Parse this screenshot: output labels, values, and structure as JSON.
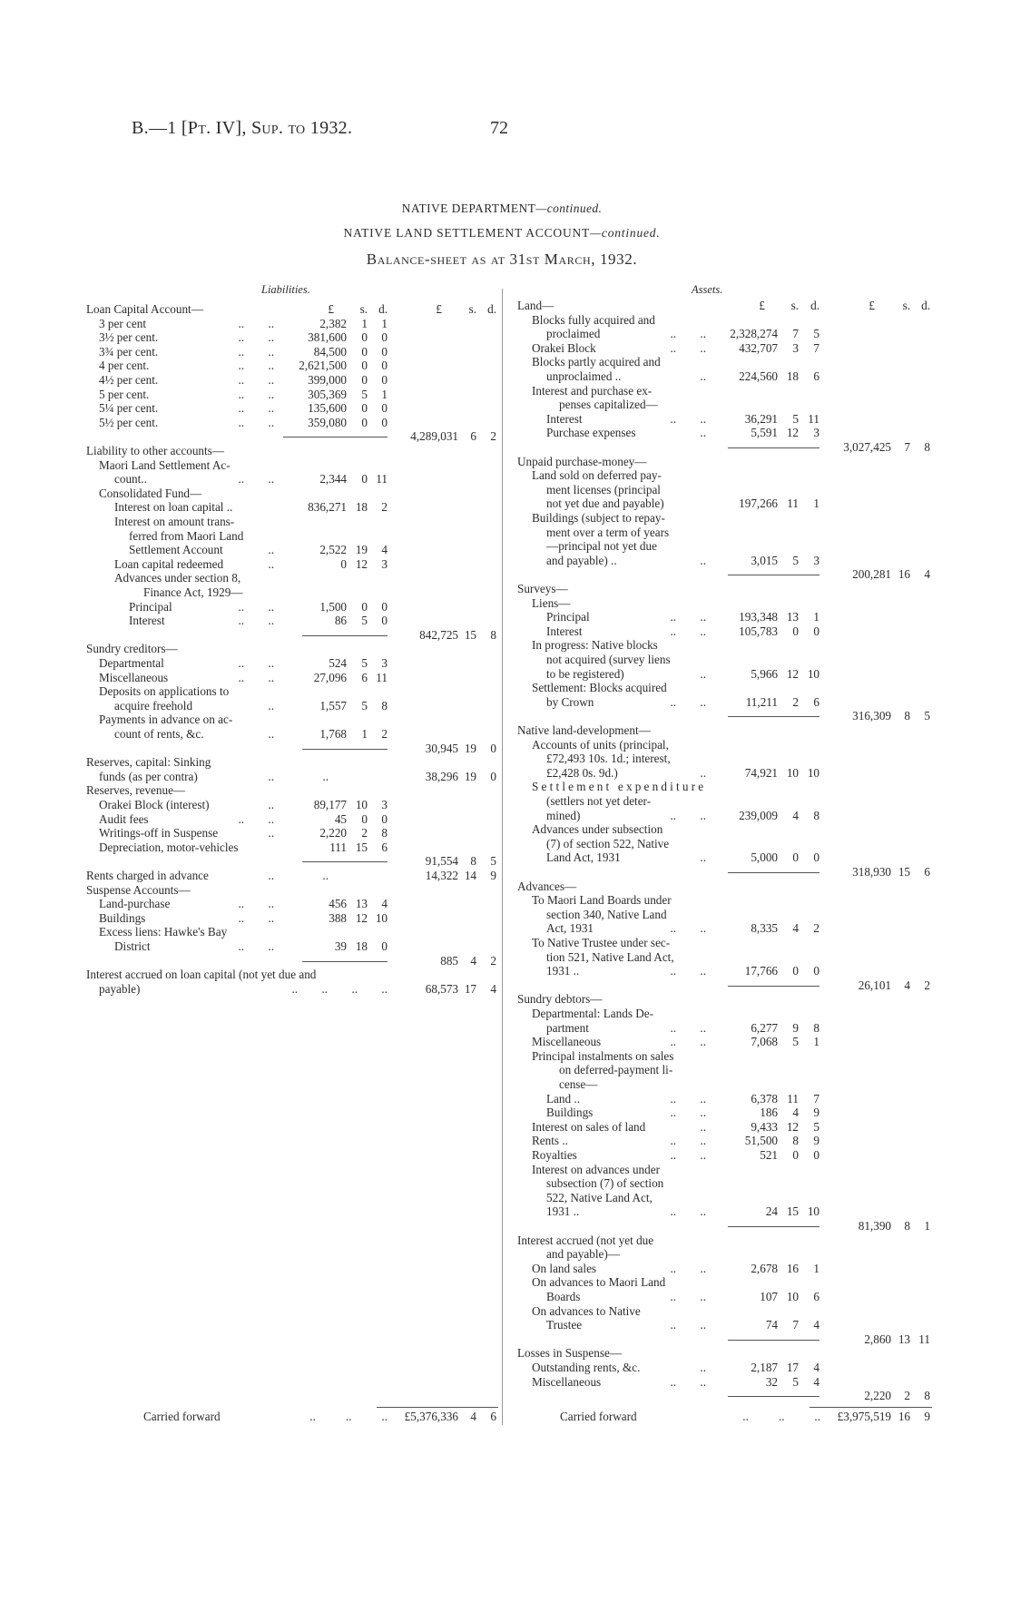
{
  "header": {
    "reference": "B.—1 [Pt. IV], Sup. to 1932.",
    "page_number": "72"
  },
  "titles": {
    "department": "NATIVE DEPARTMENT",
    "department_suffix": "—continued.",
    "account": "NATIVE LAND SETTLEMENT ACCOUNT",
    "account_suffix": "—continued.",
    "statement": "Balance-sheet as at 31st March, 1932."
  },
  "currency_headers": {
    "pounds": "£",
    "shillings": "s.",
    "pence": "d."
  },
  "liabilities": {
    "heading": "Liabilities.",
    "rows": [
      {
        "t": "Loan Capital Account—",
        "i": 0,
        "head": true
      },
      {
        "t": "3 per cent",
        "i": 1,
        "dots": "..        ..",
        "a": [
          "2,382",
          "1",
          "1"
        ]
      },
      {
        "t": "3½ per cent.",
        "i": 1,
        "dots": "..        ..",
        "a": [
          "381,600",
          "0",
          "0"
        ]
      },
      {
        "t": "3¾ per cent.",
        "i": 1,
        "dots": "..        ..",
        "a": [
          "84,500",
          "0",
          "0"
        ]
      },
      {
        "t": "4 per cent.",
        "i": 1,
        "dots": "..        ..",
        "a": [
          "2,621,500",
          "0",
          "0"
        ]
      },
      {
        "t": "4½ per cent.",
        "i": 1,
        "dots": "..        ..",
        "a": [
          "399,000",
          "0",
          "0"
        ]
      },
      {
        "t": "5 per cent.",
        "i": 1,
        "dots": "..        ..",
        "a": [
          "305,369",
          "5",
          "1"
        ]
      },
      {
        "t": "5¼ per cent.",
        "i": 1,
        "dots": "..        ..",
        "a": [
          "135,600",
          "0",
          "0"
        ]
      },
      {
        "t": "5½ per cent.",
        "i": 1,
        "dots": "..        ..",
        "a": [
          "359,080",
          "0",
          "0"
        ]
      },
      {
        "t": "",
        "i": 0,
        "rule": true,
        "b": [
          "4,289,031",
          "6",
          "2"
        ]
      },
      {
        "t": "Liability to other accounts—",
        "i": 0
      },
      {
        "t": "Maori Land Settlement Ac-",
        "i": 1
      },
      {
        "t": "count..",
        "i": 2,
        "dots": "..        ..",
        "a": [
          "2,344",
          "0",
          "11"
        ]
      },
      {
        "t": "Consolidated Fund—",
        "i": 1
      },
      {
        "t": "Interest on loan capital ..",
        "i": 2,
        "a": [
          "836,271",
          "18",
          "2"
        ]
      },
      {
        "t": "Interest on amount trans-",
        "i": 2
      },
      {
        "t": "ferred from Maori Land",
        "i": 3
      },
      {
        "t": "Settlement Account",
        "i": 3,
        "dots": "..",
        "a": [
          "2,522",
          "19",
          "4"
        ]
      },
      {
        "t": "Loan capital redeemed",
        "i": 2,
        "dots": "..",
        "a": [
          "0",
          "12",
          "3"
        ]
      },
      {
        "t": "Advances under section 8,",
        "i": 2
      },
      {
        "t": "Finance Act, 1929—",
        "i": 4
      },
      {
        "t": "Principal",
        "i": 3,
        "dots": "..        ..",
        "a": [
          "1,500",
          "0",
          "0"
        ]
      },
      {
        "t": "Interest",
        "i": 3,
        "dots": "..        ..",
        "a": [
          "86",
          "5",
          "0"
        ]
      },
      {
        "t": "",
        "i": 0,
        "rule": true,
        "b": [
          "842,725",
          "15",
          "8"
        ]
      },
      {
        "t": "Sundry creditors—",
        "i": 0
      },
      {
        "t": "Departmental",
        "i": 1,
        "dots": "..        ..",
        "a": [
          "524",
          "5",
          "3"
        ]
      },
      {
        "t": "Miscellaneous",
        "i": 1,
        "dots": "..        ..",
        "a": [
          "27,096",
          "6",
          "11"
        ]
      },
      {
        "t": "Deposits on applications to",
        "i": 1
      },
      {
        "t": "acquire freehold",
        "i": 2,
        "dots": "..",
        "a": [
          "1,557",
          "5",
          "8"
        ]
      },
      {
        "t": "Payments in advance on ac-",
        "i": 1
      },
      {
        "t": "count of rents, &c.",
        "i": 2,
        "dots": "..",
        "a": [
          "1,768",
          "1",
          "2"
        ]
      },
      {
        "t": "",
        "i": 0,
        "rule": true,
        "b": [
          "30,945",
          "19",
          "0"
        ]
      },
      {
        "t": "Reserves,   capital:   Sinking",
        "i": 0
      },
      {
        "t": "funds (as per contra)",
        "i": 1,
        "dots": "..",
        "a": [
          "..",
          "",
          ""
        ],
        "b": [
          "38,296",
          "19",
          "0"
        ]
      },
      {
        "t": "Reserves, revenue—",
        "i": 0
      },
      {
        "t": "Orakei Block (interest)",
        "i": 1,
        "dots": "..",
        "a": [
          "89,177",
          "10",
          "3"
        ]
      },
      {
        "t": "Audit fees",
        "i": 1,
        "dots": "..        ..",
        "a": [
          "45",
          "0",
          "0"
        ]
      },
      {
        "t": "Writings-off in Suspense",
        "i": 1,
        "dots": "..",
        "a": [
          "2,220",
          "2",
          "8"
        ]
      },
      {
        "t": "Depreciation, motor-vehicles",
        "i": 1,
        "a": [
          "111",
          "15",
          "6"
        ]
      },
      {
        "t": "",
        "i": 0,
        "rule": true,
        "b": [
          "91,554",
          "8",
          "5"
        ]
      },
      {
        "t": "Rents charged in advance",
        "i": 0,
        "dots": "..",
        "a": [
          "..",
          "",
          ""
        ],
        "b": [
          "14,322",
          "14",
          "9"
        ]
      },
      {
        "t": "Suspense Accounts—",
        "i": 0
      },
      {
        "t": "Land-purchase",
        "i": 1,
        "dots": "..        ..",
        "a": [
          "456",
          "13",
          "4"
        ]
      },
      {
        "t": "Buildings",
        "i": 1,
        "dots": "..        ..",
        "a": [
          "388",
          "12",
          "10"
        ]
      },
      {
        "t": "Excess liens:  Hawke's Bay",
        "i": 1
      },
      {
        "t": "District",
        "i": 2,
        "dots": "..        ..",
        "a": [
          "39",
          "18",
          "0"
        ]
      },
      {
        "t": "",
        "i": 0,
        "rule": true,
        "b": [
          "885",
          "4",
          "2"
        ]
      },
      {
        "t": "Interest accrued on loan capital (not yet due and",
        "i": 0
      },
      {
        "t": "payable)",
        "i": 1,
        "dots": "..        ..        ..        ..",
        "wide": true,
        "b": [
          "68,573",
          "17",
          "4"
        ]
      }
    ],
    "carried_forward": {
      "label": "Carried forward",
      "dots": "..          ..          ..",
      "total": [
        "£5,376,336",
        "4",
        "6"
      ]
    }
  },
  "assets": {
    "heading": "Assets.",
    "rows": [
      {
        "t": "Land—",
        "i": 0,
        "head": true
      },
      {
        "t": "Blocks  fully  acquired  and",
        "i": 1
      },
      {
        "t": "proclaimed",
        "i": 2,
        "dots": "..        ..",
        "a": [
          "2,328,274",
          "7",
          "5"
        ]
      },
      {
        "t": "Orakei Block",
        "i": 1,
        "dots": "..        ..",
        "a": [
          "432,707",
          "3",
          "7"
        ]
      },
      {
        "t": "Blocks partly acquired and",
        "i": 1
      },
      {
        "t": "unproclaimed ..",
        "i": 2,
        "dots": "..",
        "a": [
          "224,560",
          "18",
          "6"
        ]
      },
      {
        "t": "Interest  and  purchase  ex-",
        "i": 1
      },
      {
        "t": "penses capitalized—",
        "i": 3
      },
      {
        "t": "Interest",
        "i": 2,
        "dots": "..        ..",
        "a": [
          "36,291",
          "5",
          "11"
        ]
      },
      {
        "t": "Purchase expenses",
        "i": 2,
        "dots": "..",
        "a": [
          "5,591",
          "12",
          "3"
        ]
      },
      {
        "t": "",
        "i": 0,
        "rule": true,
        "b": [
          "3,027,425",
          "7",
          "8"
        ]
      },
      {
        "t": "Unpaid purchase-money—",
        "i": 0
      },
      {
        "t": "Land sold on deferred pay-",
        "i": 1
      },
      {
        "t": "ment  licenses  (principal",
        "i": 2
      },
      {
        "t": "not yet due and payable)",
        "i": 2,
        "a": [
          "197,266",
          "11",
          "1"
        ]
      },
      {
        "t": "Buildings (subject to repay-",
        "i": 1
      },
      {
        "t": "ment over a term of years",
        "i": 2
      },
      {
        "t": "—principal  not  yet  due",
        "i": 2
      },
      {
        "t": "and payable) ..",
        "i": 2,
        "dots": "..",
        "a": [
          "3,015",
          "5",
          "3"
        ]
      },
      {
        "t": "",
        "i": 0,
        "rule": true,
        "b": [
          "200,281",
          "16",
          "4"
        ]
      },
      {
        "t": "Surveys—",
        "i": 0
      },
      {
        "t": "Liens—",
        "i": 1
      },
      {
        "t": "Principal",
        "i": 2,
        "dots": "..        ..",
        "a": [
          "193,348",
          "13",
          "1"
        ]
      },
      {
        "t": "Interest",
        "i": 2,
        "dots": "..        ..",
        "a": [
          "105,783",
          "0",
          "0"
        ]
      },
      {
        "t": "In progress:  Native blocks",
        "i": 1
      },
      {
        "t": "not acquired (survey liens",
        "i": 2
      },
      {
        "t": "to be registered)",
        "i": 2,
        "dots": "..",
        "a": [
          "5,966",
          "12",
          "10"
        ]
      },
      {
        "t": "Settlement: Blocks acquired",
        "i": 1
      },
      {
        "t": "by Crown",
        "i": 2,
        "dots": "..        ..",
        "a": [
          "11,211",
          "2",
          "6"
        ]
      },
      {
        "t": "",
        "i": 0,
        "rule": true,
        "b": [
          "316,309",
          "8",
          "5"
        ]
      },
      {
        "t": "Native land-development—",
        "i": 0
      },
      {
        "t": "Accounts of units (principal,",
        "i": 1
      },
      {
        "t": "£72,493 10s. 1d.; interest,",
        "i": 2
      },
      {
        "t": "£2,428 0s. 9d.)",
        "i": 2,
        "dots": "..",
        "a": [
          "74,921",
          "10",
          "10"
        ]
      },
      {
        "t": "Settlement expenditure",
        "i": 1,
        "spaced": true
      },
      {
        "t": "(settlers   not   yet   deter-",
        "i": 2
      },
      {
        "t": "mined)",
        "i": 2,
        "dots": "..        ..",
        "a": [
          "239,009",
          "4",
          "8"
        ]
      },
      {
        "t": "Advances  under  subsection",
        "i": 1
      },
      {
        "t": "(7) of section 522, Native",
        "i": 2
      },
      {
        "t": "Land Act, 1931",
        "i": 2,
        "dots": "..",
        "a": [
          "5,000",
          "0",
          "0"
        ]
      },
      {
        "t": "",
        "i": 0,
        "rule": true,
        "b": [
          "318,930",
          "15",
          "6"
        ]
      },
      {
        "t": "Advances—",
        "i": 0
      },
      {
        "t": "To Maori Land Boards under",
        "i": 1
      },
      {
        "t": "section 340, Native Land",
        "i": 2
      },
      {
        "t": "Act, 1931",
        "i": 2,
        "dots": "..        ..",
        "a": [
          "8,335",
          "4",
          "2"
        ]
      },
      {
        "t": "To Native Trustee under sec-",
        "i": 1
      },
      {
        "t": "tion 521, Native Land Act,",
        "i": 2
      },
      {
        "t": "1931 ..",
        "i": 2,
        "dots": "..        ..",
        "a": [
          "17,766",
          "0",
          "0"
        ]
      },
      {
        "t": "",
        "i": 0,
        "rule": true,
        "b": [
          "26,101",
          "4",
          "2"
        ]
      },
      {
        "t": "Sundry debtors—",
        "i": 0
      },
      {
        "t": "Departmental:  Lands  De-",
        "i": 1
      },
      {
        "t": "partment",
        "i": 2,
        "dots": "..        ..",
        "a": [
          "6,277",
          "9",
          "8"
        ]
      },
      {
        "t": "Miscellaneous",
        "i": 1,
        "dots": "..        ..",
        "a": [
          "7,068",
          "5",
          "1"
        ]
      },
      {
        "t": "Principal instalments on sales",
        "i": 1
      },
      {
        "t": "on deferred-payment li-",
        "i": 3
      },
      {
        "t": "cense—",
        "i": 3
      },
      {
        "t": "Land ..",
        "i": 2,
        "dots": "..        ..",
        "a": [
          "6,378",
          "11",
          "7"
        ]
      },
      {
        "t": "Buildings",
        "i": 2,
        "dots": "..        ..",
        "a": [
          "186",
          "4",
          "9"
        ]
      },
      {
        "t": "Interest on sales of land",
        "i": 1,
        "dots": "..",
        "a": [
          "9,433",
          "12",
          "5"
        ]
      },
      {
        "t": "Rents ..",
        "i": 1,
        "dots": "..        ..",
        "a": [
          "51,500",
          "8",
          "9"
        ]
      },
      {
        "t": "Royalties",
        "i": 1,
        "dots": "..        ..",
        "a": [
          "521",
          "0",
          "0"
        ]
      },
      {
        "t": "Interest  on  advances  under",
        "i": 1
      },
      {
        "t": "subsection  (7)  of  section",
        "i": 2
      },
      {
        "t": "522,  Native  Land  Act,",
        "i": 2
      },
      {
        "t": "1931 ..",
        "i": 2,
        "dots": "..        ..",
        "a": [
          "24",
          "15",
          "10"
        ]
      },
      {
        "t": "",
        "i": 0,
        "rule": true,
        "b": [
          "81,390",
          "8",
          "1"
        ]
      },
      {
        "t": "Interest accrued (not yet due",
        "i": 0
      },
      {
        "t": "and payable)—",
        "i": 2
      },
      {
        "t": "On land sales",
        "i": 1,
        "dots": "..        ..",
        "a": [
          "2,678",
          "16",
          "1"
        ]
      },
      {
        "t": "On advances to Maori Land",
        "i": 1
      },
      {
        "t": "Boards",
        "i": 2,
        "dots": "..        ..",
        "a": [
          "107",
          "10",
          "6"
        ]
      },
      {
        "t": "On  advances  to  Native",
        "i": 1
      },
      {
        "t": "Trustee",
        "i": 2,
        "dots": "..        ..",
        "a": [
          "74",
          "7",
          "4"
        ]
      },
      {
        "t": "",
        "i": 0,
        "rule": true,
        "b": [
          "2,860",
          "13",
          "11"
        ]
      },
      {
        "t": "Losses in Suspense—",
        "i": 0
      },
      {
        "t": "Outstanding rents, &c.",
        "i": 1,
        "dots": "..",
        "a": [
          "2,187",
          "17",
          "4"
        ]
      },
      {
        "t": "Miscellaneous",
        "i": 1,
        "dots": "..        ..",
        "a": [
          "32",
          "5",
          "4"
        ]
      },
      {
        "t": "",
        "i": 0,
        "rule": true,
        "b": [
          "2,220",
          "2",
          "8"
        ]
      }
    ],
    "carried_forward": {
      "label": "Carried forward",
      "dots": "..          ..          ..",
      "total": [
        "£3,975,519",
        "16",
        "9"
      ]
    }
  }
}
